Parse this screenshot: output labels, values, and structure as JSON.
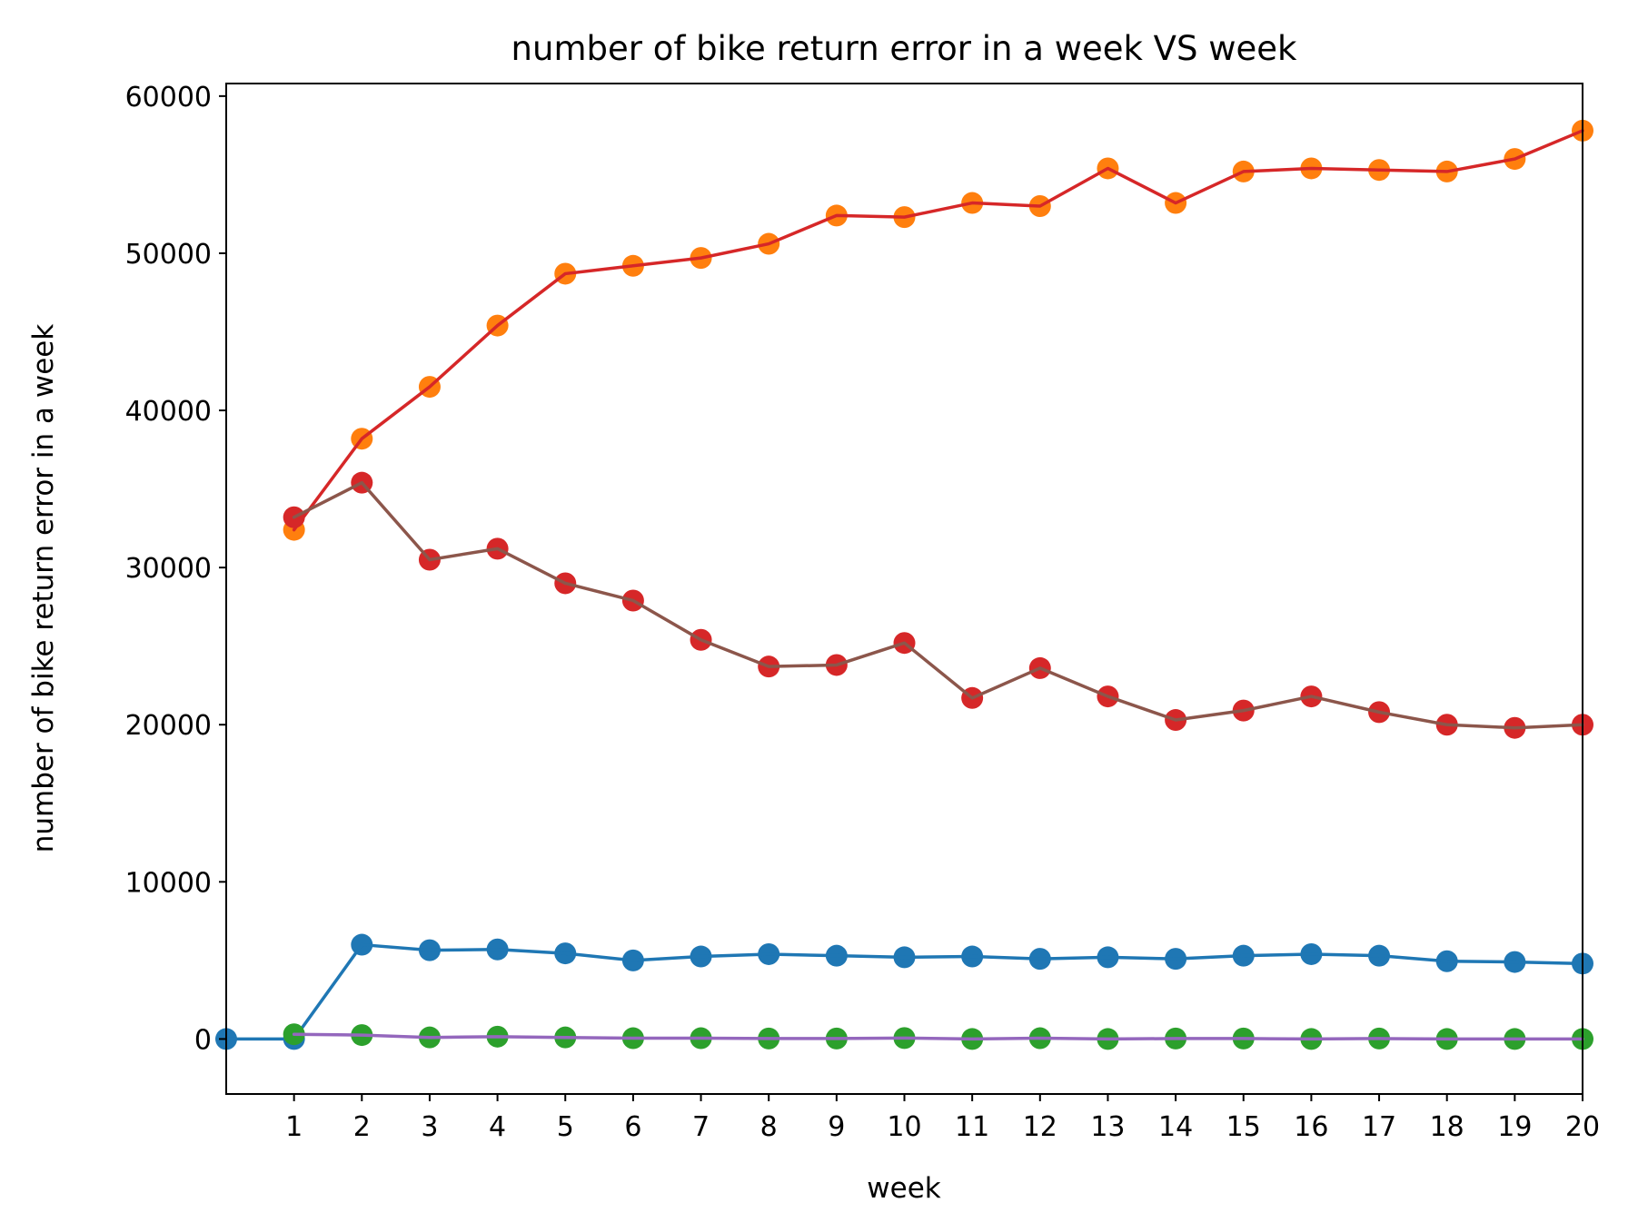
{
  "chart_data": {
    "type": "line",
    "title": "number of bike return error in a week VS week",
    "xlabel": "week",
    "ylabel": "number of bike return error in a week",
    "xlim": [
      0,
      20
    ],
    "ylim": [
      -3500,
      60800
    ],
    "xticks": [
      "1",
      "2",
      "3",
      "4",
      "5",
      "6",
      "7",
      "8",
      "9",
      "10",
      "11",
      "12",
      "13",
      "14",
      "15",
      "16",
      "17",
      "18",
      "19",
      "20"
    ],
    "yticks": [
      "0",
      "10000",
      "20000",
      "30000",
      "40000",
      "50000",
      "60000"
    ],
    "grid": false,
    "legend": "none",
    "series": [
      {
        "line_color": "#1f77b4",
        "marker_color": "#1f77b4",
        "x": [
          0,
          1,
          2,
          3,
          4,
          5,
          6,
          7,
          8,
          9,
          10,
          11,
          12,
          13,
          14,
          15,
          16,
          17,
          18,
          19,
          20
        ],
        "values": [
          0,
          0,
          6000,
          5650,
          5700,
          5450,
          5000,
          5250,
          5400,
          5300,
          5200,
          5250,
          5100,
          5200,
          5100,
          5300,
          5400,
          5300,
          4950,
          4900,
          4800
        ]
      },
      {
        "line_color": "#d62728",
        "marker_color": "#ff7f0e",
        "x": [
          1,
          2,
          3,
          4,
          5,
          6,
          7,
          8,
          9,
          10,
          11,
          12,
          13,
          14,
          15,
          16,
          17,
          18,
          19,
          20
        ],
        "values": [
          32400,
          38200,
          41500,
          45400,
          48700,
          49200,
          49700,
          50600,
          52400,
          52300,
          53200,
          53000,
          55400,
          53200,
          55200,
          55400,
          55300,
          55200,
          56000,
          57800
        ]
      },
      {
        "line_color": "#9467bd",
        "marker_color": "#2ca02c",
        "x": [
          1,
          2,
          3,
          4,
          5,
          6,
          7,
          8,
          9,
          10,
          11,
          12,
          13,
          14,
          15,
          16,
          17,
          18,
          19,
          20
        ],
        "values": [
          300,
          250,
          100,
          150,
          100,
          50,
          50,
          30,
          30,
          60,
          0,
          50,
          0,
          30,
          30,
          0,
          30,
          0,
          0,
          0
        ]
      },
      {
        "line_color": "#8c564b",
        "marker_color": "#d62728",
        "x": [
          1,
          2,
          3,
          4,
          5,
          6,
          7,
          8,
          9,
          10,
          11,
          12,
          13,
          14,
          15,
          16,
          17,
          18,
          19,
          20
        ],
        "values": [
          33200,
          35400,
          30500,
          31200,
          29000,
          27900,
          25400,
          23700,
          23800,
          25200,
          21700,
          23600,
          21800,
          20300,
          20900,
          21800,
          20800,
          20000,
          19800,
          20000
        ]
      }
    ]
  }
}
